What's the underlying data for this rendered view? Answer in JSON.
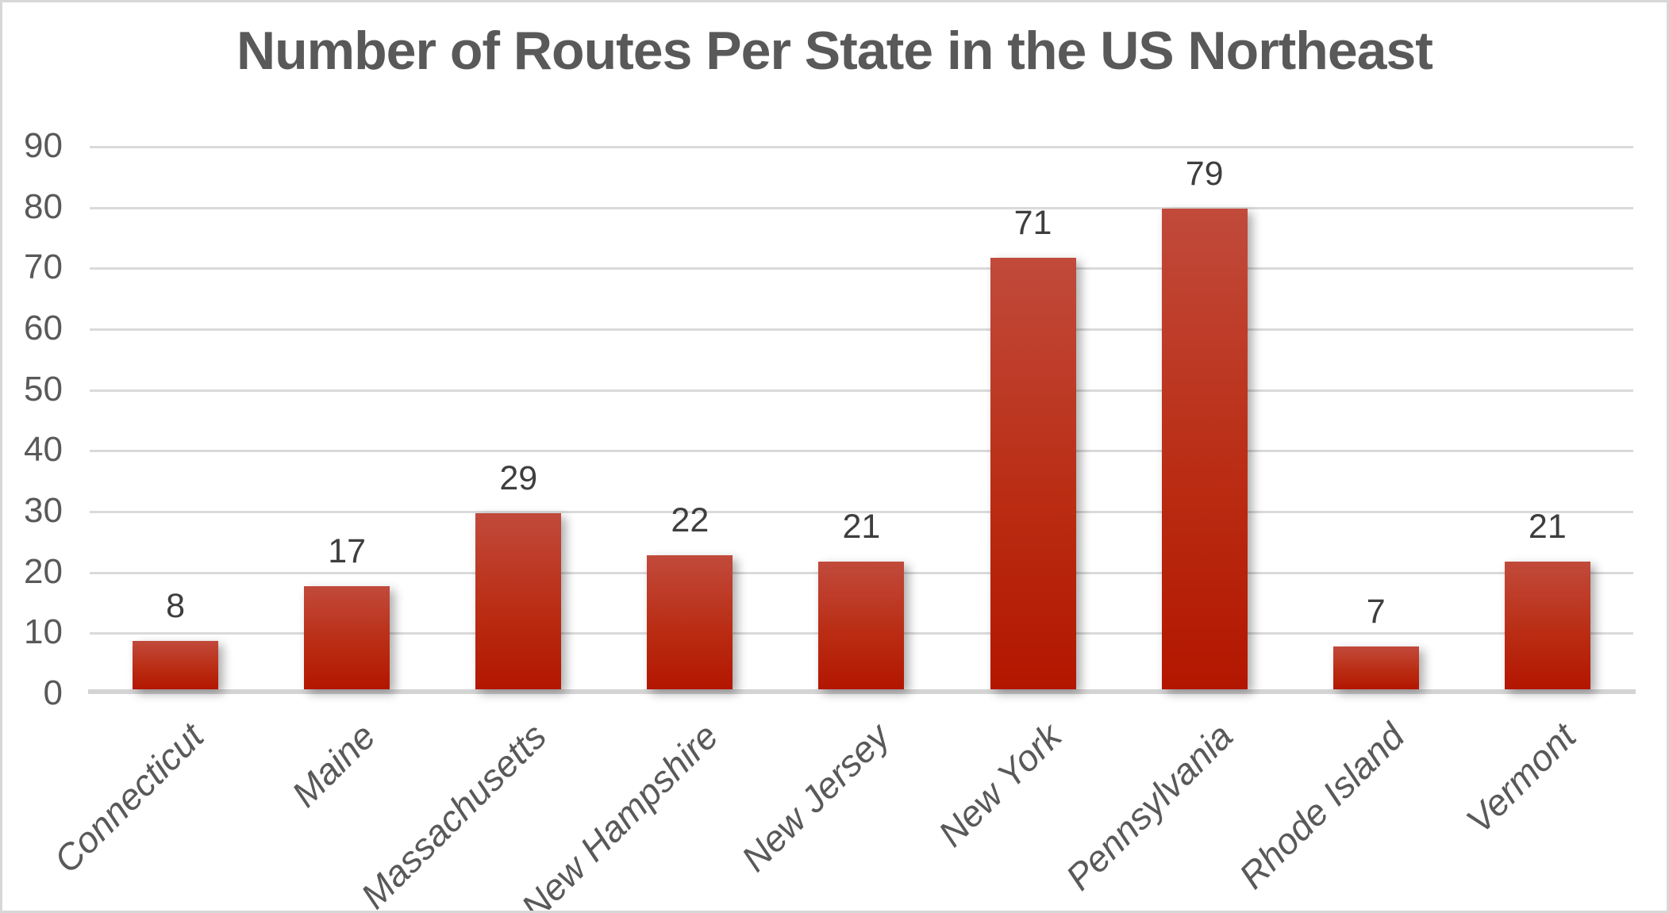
{
  "chart_data": {
    "type": "bar",
    "title": "Number of Routes Per State in the US Northeast",
    "categories": [
      "Connecticut",
      "Maine",
      "Massachusetts",
      "New Hampshire",
      "New Jersey",
      "New York",
      "Pennsylvania",
      "Rhode Island",
      "Vermont"
    ],
    "values": [
      8,
      17,
      29,
      22,
      21,
      71,
      79,
      7,
      21
    ],
    "y_ticks": [
      90,
      80,
      70,
      60,
      50,
      40,
      30,
      20,
      10,
      0
    ],
    "ylim": [
      0,
      90
    ],
    "xlabel": "",
    "ylabel": "",
    "legend_position": "none",
    "grid": "horizontal",
    "data_labels": "outside-end",
    "colors": {
      "bar_gradient_top": "#c14a3b",
      "bar_gradient_bottom": "#b31600",
      "title_text": "#595959",
      "axis_text": "#595959",
      "data_label_text": "#3e3e3e",
      "gridline": "#dadada",
      "axis_line": "#d4d4d4",
      "frame_border": "#d7d7d7",
      "background": "#ffffff"
    }
  }
}
